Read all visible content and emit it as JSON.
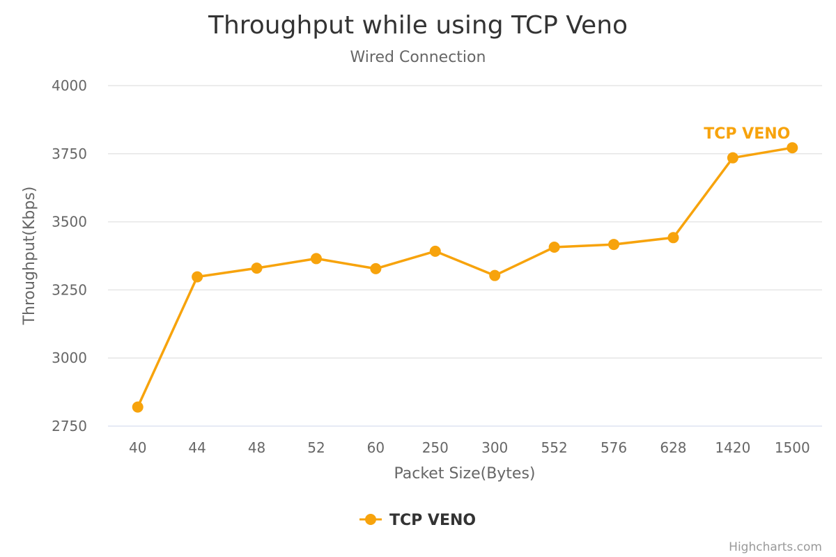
{
  "chart_data": {
    "type": "line",
    "title": "Throughput while using TCP Veno",
    "subtitle": "Wired Connection",
    "xlabel": "Packet Size(Bytes)",
    "ylabel": "Throughput(Kbps)",
    "categories": [
      "40",
      "44",
      "48",
      "52",
      "60",
      "250",
      "300",
      "552",
      "576",
      "628",
      "1420",
      "1500"
    ],
    "ylim": [
      2750,
      4000
    ],
    "yticks": [
      2750,
      3000,
      3250,
      3500,
      3750,
      4000
    ],
    "grid": true,
    "legend_position": "bottom-center",
    "series": [
      {
        "name": "TCP VENO",
        "color": "#f7a30c",
        "end_label": "TCP VENO",
        "values": [
          2820,
          3298,
          3330,
          3365,
          3328,
          3392,
          3303,
          3407,
          3417,
          3442,
          3735,
          3772
        ]
      }
    ]
  },
  "credits": "Highcharts.com"
}
